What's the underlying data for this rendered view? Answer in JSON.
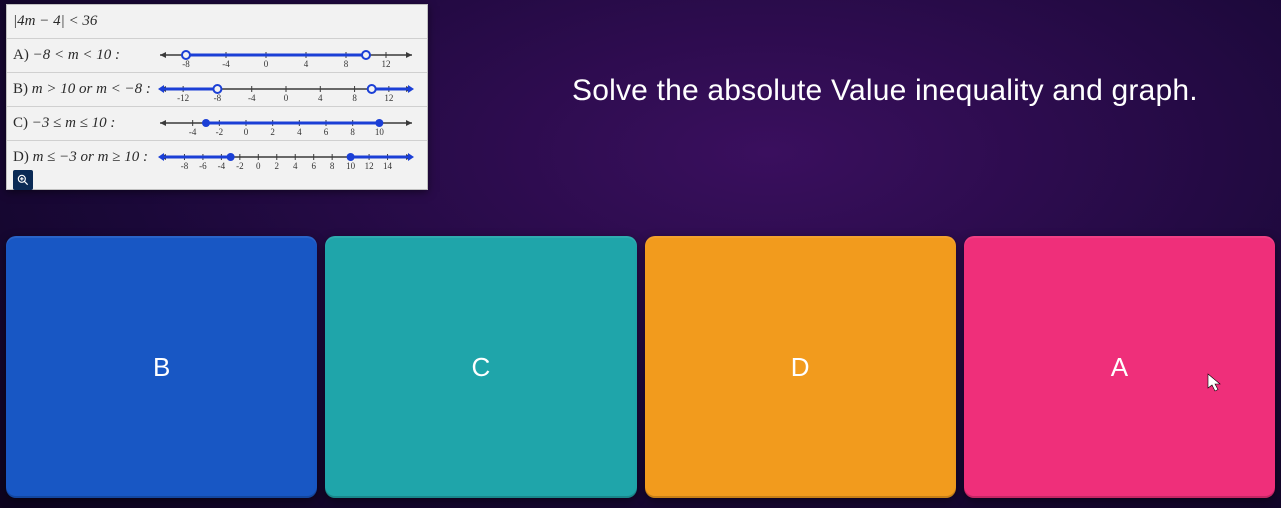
{
  "question": {
    "inequality_html": "|4m − 4| < 36",
    "options": [
      {
        "label": "A)",
        "expr": "−8 < m < 10 :",
        "line": {
          "min": -10,
          "max": 14,
          "ticks": [
            -8,
            -4,
            0,
            4,
            8,
            12
          ],
          "seg": [
            -8,
            10
          ],
          "open": true,
          "rays": false
        }
      },
      {
        "label": "B)",
        "expr": "m > 10 or m < −8 :",
        "line": {
          "min": -14,
          "max": 14,
          "ticks": [
            -12,
            -8,
            -4,
            0,
            4,
            8,
            12
          ],
          "seg": [
            -8,
            10
          ],
          "open": true,
          "rays": true
        }
      },
      {
        "label": "C)",
        "expr": "−3 ≤ m ≤ 10 :",
        "line": {
          "min": -6,
          "max": 12,
          "ticks": [
            -4,
            -2,
            0,
            2,
            4,
            6,
            8,
            10
          ],
          "seg": [
            -3,
            10
          ],
          "open": false,
          "rays": false
        }
      },
      {
        "label": "D)",
        "expr": "m ≤ −3 or m ≥ 10 :",
        "line": {
          "min": -10,
          "max": 16,
          "ticks": [
            -8,
            -6,
            -4,
            -2,
            0,
            2,
            4,
            6,
            8,
            10,
            12,
            14
          ],
          "seg": [
            -3,
            10
          ],
          "open": false,
          "rays": true
        }
      }
    ]
  },
  "prompt": "Solve the absolute Value inequality and graph.",
  "answers": [
    {
      "label": "B",
      "color": "#1857c4"
    },
    {
      "label": "C",
      "color": "#1fa5aa"
    },
    {
      "label": "D",
      "color": "#f29b1d"
    },
    {
      "label": "A",
      "color": "#ef2f7a"
    }
  ],
  "style": {
    "numline_stroke": "#3a3a3a",
    "numline_fill": "#1b3fd6",
    "tick_font": 9
  }
}
